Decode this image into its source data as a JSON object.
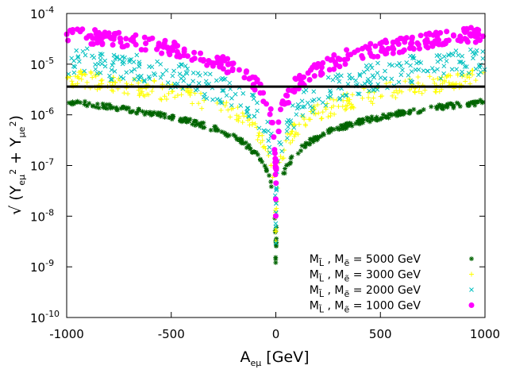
{
  "chart_data": {
    "type": "scatter",
    "xlabel": {
      "main": "A",
      "sub": "eμ",
      "unit": "  [GeV]"
    },
    "ylabel": "√ (Y_eμ² + Y_μe²)",
    "xlim": [
      -1000,
      1000
    ],
    "ylim": [
      1e-10,
      0.0001
    ],
    "yscale": "log",
    "xticks": [
      -1000,
      -500,
      0,
      500,
      1000
    ],
    "xtick_labels": [
      "-1000",
      "-500",
      "0",
      "500",
      "1000"
    ],
    "ytick_exponents": [
      -10,
      -9,
      -8,
      -7,
      -6,
      -5,
      -4
    ],
    "ytick_labels": [
      {
        "base": "10",
        "exp": "-10"
      },
      {
        "base": "10",
        "exp": "-9"
      },
      {
        "base": "10",
        "exp": "-8"
      },
      {
        "base": "10",
        "exp": "-7"
      },
      {
        "base": "10",
        "exp": "-6"
      },
      {
        "base": "10",
        "exp": "-5"
      },
      {
        "base": "10",
        "exp": "-4"
      }
    ],
    "horizontal_line": {
      "y": 3.6e-06,
      "color": "#000000"
    },
    "legend_position": "bottom-right",
    "series": [
      {
        "name": "M_L̃ , M_ẽ = 5000 GeV",
        "label_parts": {
          "pre": "M",
          "sub1": "L̃",
          "mid": " , M",
          "sub2": "ẽ",
          "post": " = 5000 GeV"
        },
        "color": "#006400",
        "marker": "asterisk",
        "edge_value": 1.8e-06,
        "spread": 0.05
      },
      {
        "name": "M_L̃ , M_ẽ = 3000 GeV",
        "label_parts": {
          "pre": "M",
          "sub1": "L̃",
          "mid": " , M",
          "sub2": "ẽ",
          "post": " = 3000 GeV"
        },
        "color": "#ffff00",
        "marker": "plus",
        "edge_value": 5.5e-06,
        "spread": 0.18
      },
      {
        "name": "M_L̃ , M_ẽ = 2000 GeV",
        "label_parts": {
          "pre": "M",
          "sub1": "L̃",
          "mid": " , M",
          "sub2": "ẽ",
          "post": " = 2000 GeV"
        },
        "color": "#00c0c0",
        "marker": "cross",
        "edge_value": 1.2e-05,
        "spread": 0.28
      },
      {
        "name": "M_L̃ , M_ẽ = 1000 GeV",
        "label_parts": {
          "pre": "M",
          "sub1": "L̃",
          "mid": " , M",
          "sub2": "ẽ",
          "post": " = 1000 GeV"
        },
        "color": "#ff00ff",
        "marker": "circle",
        "edge_value": 4e-05,
        "spread": 0.15
      }
    ]
  }
}
